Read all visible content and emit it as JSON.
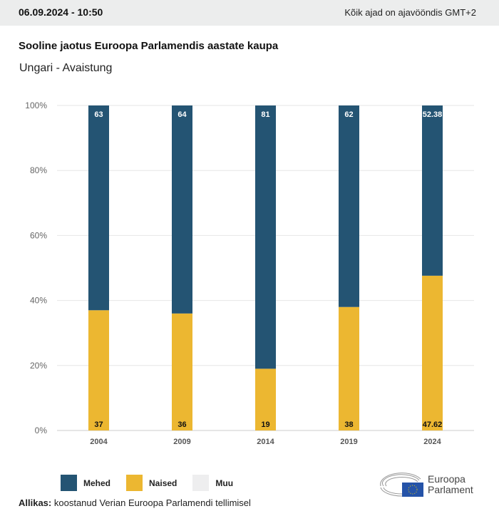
{
  "header": {
    "datetime": "06.09.2024 - 10:50",
    "timezone": "Kõik ajad on ajavööndis GMT+2"
  },
  "chart_data": {
    "type": "bar",
    "stacked": true,
    "title": "Sooline jaotus Euroopa Parlamendis aastate kaupa",
    "subtitle": "Ungari - Avaistung",
    "categories": [
      "2004",
      "2009",
      "2014",
      "2019",
      "2024"
    ],
    "series": [
      {
        "name": "Naised",
        "color": "#ecb731",
        "values": [
          37,
          36,
          19,
          38,
          47.62
        ],
        "labels": [
          "37",
          "36",
          "19",
          "38",
          "47.62"
        ]
      },
      {
        "name": "Mehed",
        "color": "#245473",
        "values": [
          63,
          64,
          81,
          62,
          52.38
        ],
        "labels": [
          "63",
          "64",
          "81",
          "62",
          "52.38"
        ]
      },
      {
        "name": "Muu",
        "color": "#eeeeef",
        "values": [
          0,
          0,
          0,
          0,
          0
        ]
      }
    ],
    "ylim": [
      0,
      100
    ],
    "yticks": [
      "0%",
      "20%",
      "40%",
      "60%",
      "80%",
      "100%"
    ],
    "grid": true,
    "legend": "bottom-left"
  },
  "legend": [
    {
      "label": "Mehed",
      "color": "#245473"
    },
    {
      "label": "Naised",
      "color": "#ecb731"
    },
    {
      "label": "Muu",
      "color": "#eeeeef"
    }
  ],
  "source": {
    "label": "Allikas:",
    "text": "koostanud Verian Euroopa Parlamendi tellimisel"
  },
  "logo": {
    "line1": "Euroopa",
    "line2": "Parlament"
  }
}
